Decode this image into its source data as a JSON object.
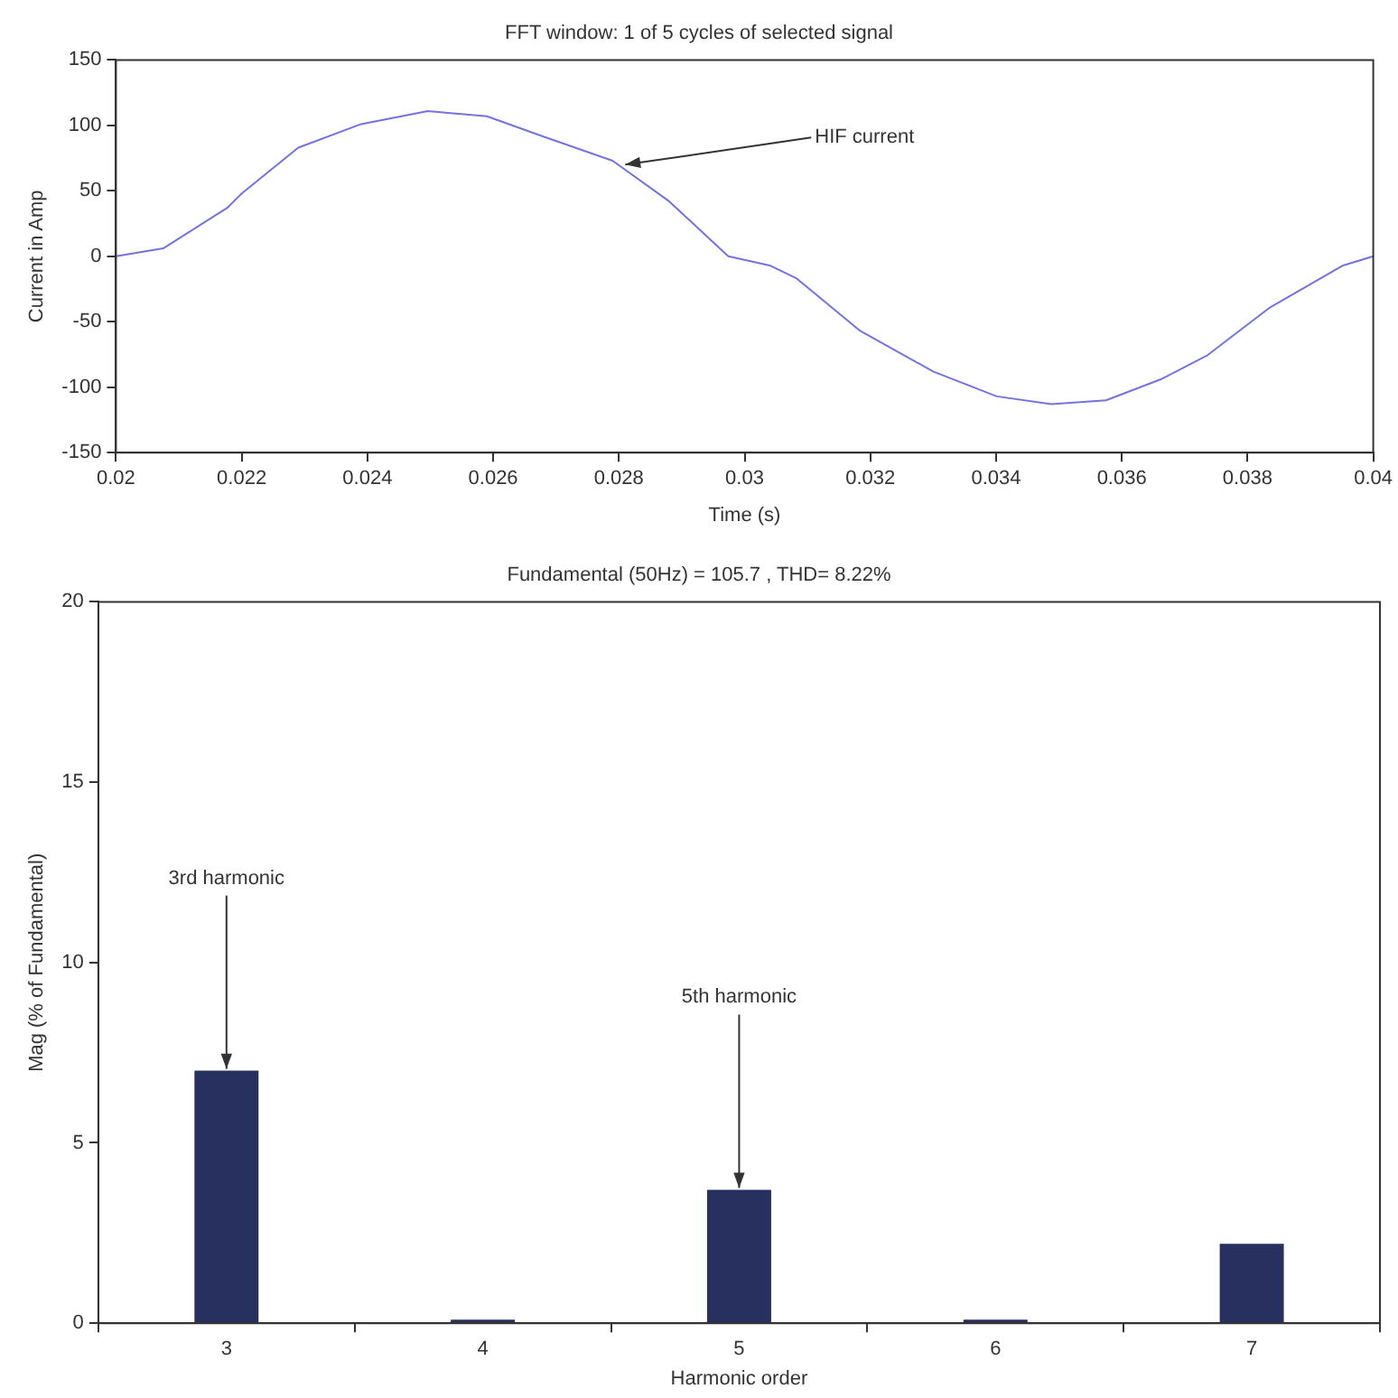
{
  "chart_data": [
    {
      "type": "line",
      "title": "FFT window: 1 of 5 cycles of selected signal",
      "xlabel": "Time (s)",
      "ylabel": "Current in Amp",
      "marker": "none",
      "line_style": "solid",
      "grid": false,
      "legend": false,
      "series": [
        {
          "color": "#7373dd",
          "x": [
            0.02,
            0.02075,
            0.02177,
            0.022,
            0.0229,
            0.0239,
            0.02496,
            0.0259,
            0.02677,
            0.0279,
            0.0288,
            0.02974,
            0.0304,
            0.03083,
            0.03184,
            0.033,
            0.03401,
            0.03488,
            0.03575,
            0.03662,
            0.03735,
            0.03836,
            0.03952,
            0.04
          ],
          "values": [
            0,
            6,
            37,
            48,
            83,
            101,
            111,
            107,
            92,
            73,
            42,
            0,
            -7,
            -17,
            -57,
            -88,
            -107,
            -113,
            -110,
            -94,
            -76,
            -39,
            -7,
            0
          ]
        }
      ],
      "xlim": [
        0.02,
        0.04
      ],
      "xticks": [
        0.02,
        0.022,
        0.024,
        0.026,
        0.028,
        0.03,
        0.032,
        0.034,
        0.036,
        0.038,
        0.04
      ],
      "ylim": [
        -150,
        150
      ],
      "yticks": [
        -150,
        -100,
        -50,
        0,
        50,
        100,
        150
      ],
      "annotations": [
        {
          "text": "HIF current",
          "x": 0.0281,
          "y": 70
        }
      ]
    },
    {
      "type": "bar",
      "title": "Fundamental (50Hz) = 105.7 , THD= 8.22%",
      "xlabel": "Harmonic order",
      "ylabel": "Mag (% of Fundamental)",
      "grid": false,
      "legend": false,
      "categories": [
        "3",
        "4",
        "5",
        "6",
        "7"
      ],
      "values": [
        7,
        0.1,
        3.7,
        0.1,
        2.2
      ],
      "color": "#27305e",
      "ylim": [
        0,
        20
      ],
      "yticks": [
        0,
        5,
        10,
        15,
        20
      ],
      "annotations": [
        {
          "text": "3rd harmonic",
          "x": "3",
          "y": 7
        },
        {
          "text": "5th harmonic",
          "x": "5",
          "y": 3.7
        }
      ]
    }
  ]
}
